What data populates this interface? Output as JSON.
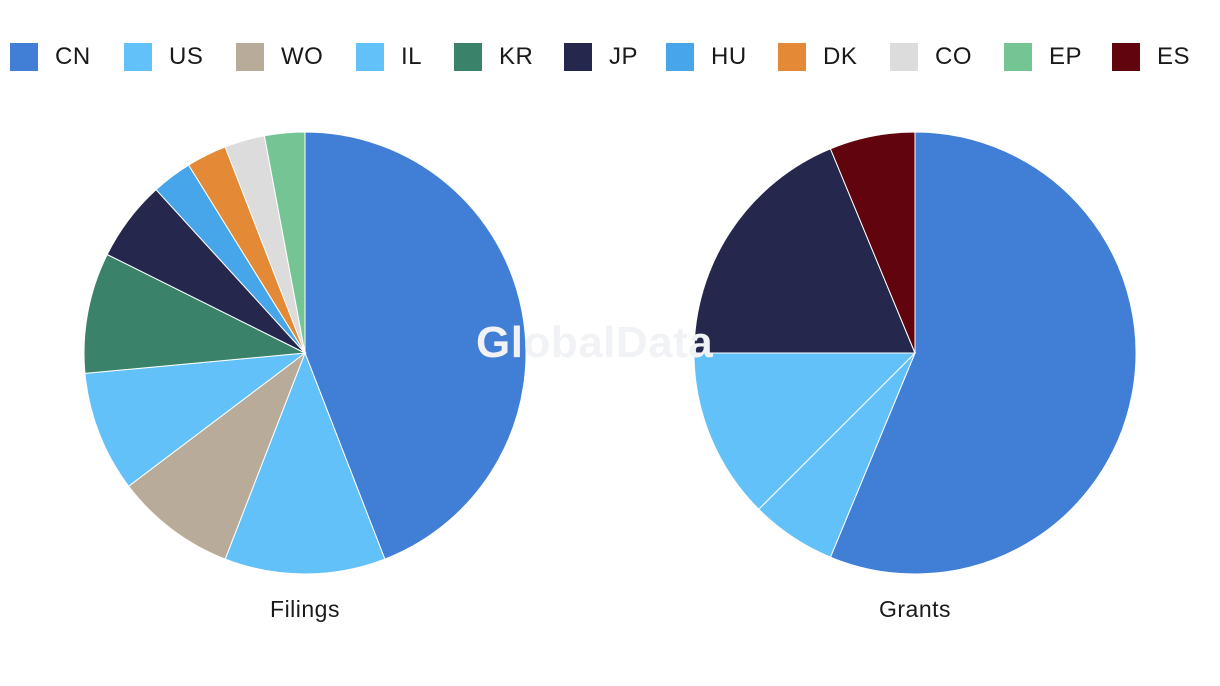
{
  "watermark": "GlobalData",
  "legend": [
    {
      "label": "CN",
      "color": "#417ed6"
    },
    {
      "label": "US",
      "color": "#62c1f9"
    },
    {
      "label": "WO",
      "color": "#b8ab99"
    },
    {
      "label": "IL",
      "color": "#62c1f9"
    },
    {
      "label": "KR",
      "color": "#3a826a"
    },
    {
      "label": "JP",
      "color": "#25274c"
    },
    {
      "label": "HU",
      "color": "#46a6e9"
    },
    {
      "label": "DK",
      "color": "#e48a36"
    },
    {
      "label": "CO",
      "color": "#dcdcdc"
    },
    {
      "label": "EP",
      "color": "#75c493"
    },
    {
      "label": "ES",
      "color": "#62040d"
    }
  ],
  "chart_data": [
    {
      "type": "pie",
      "title": "Filings",
      "legend_position": "top",
      "slices": [
        {
          "label": "CN",
          "value": 15,
          "color": "#417ed6"
        },
        {
          "label": "US",
          "value": 4,
          "color": "#62c1f9"
        },
        {
          "label": "WO",
          "value": 3,
          "color": "#b8ab99"
        },
        {
          "label": "IL",
          "value": 3,
          "color": "#62c1f9"
        },
        {
          "label": "KR",
          "value": 3,
          "color": "#3a826a"
        },
        {
          "label": "JP",
          "value": 2,
          "color": "#25274c"
        },
        {
          "label": "HU",
          "value": 1,
          "color": "#46a6e9"
        },
        {
          "label": "DK",
          "value": 1,
          "color": "#e48a36"
        },
        {
          "label": "CO",
          "value": 1,
          "color": "#dcdcdc"
        },
        {
          "label": "EP",
          "value": 1,
          "color": "#75c493"
        }
      ]
    },
    {
      "type": "pie",
      "title": "Grants",
      "legend_position": "top",
      "slices": [
        {
          "label": "CN",
          "value": 9,
          "color": "#417ed6"
        },
        {
          "label": "US",
          "value": 1,
          "color": "#62c1f9"
        },
        {
          "label": "IL",
          "value": 2,
          "color": "#62c1f9"
        },
        {
          "label": "JP",
          "value": 3,
          "color": "#25274c"
        },
        {
          "label": "ES",
          "value": 1,
          "color": "#62040d"
        }
      ]
    }
  ]
}
